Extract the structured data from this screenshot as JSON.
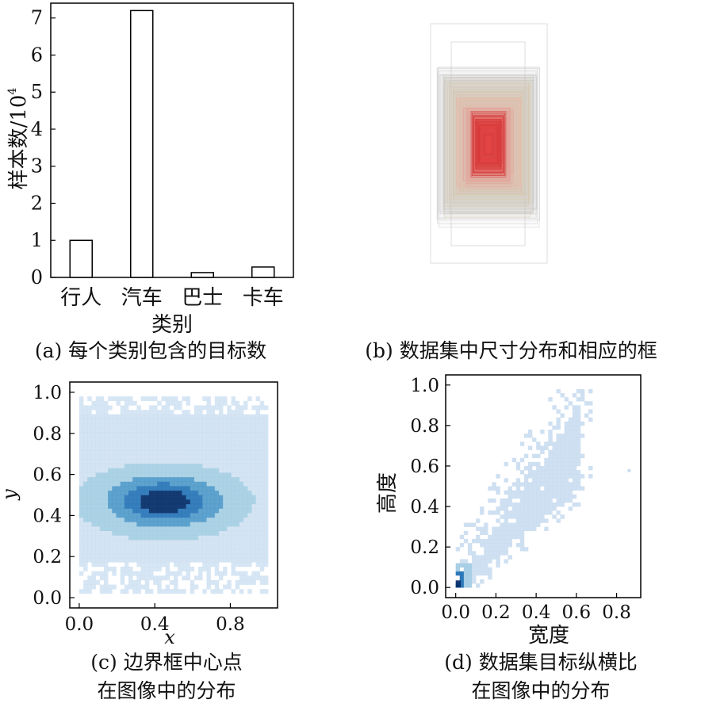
{
  "chart_data": [
    {
      "panel": "a",
      "type": "bar",
      "caption": "(a) 每个类别包含的目标数",
      "xlabel": "类别",
      "ylabel": "样本数/10",
      "ylabel_sup": "4",
      "categories": [
        "行人",
        "汽车",
        "巴士",
        "卡车"
      ],
      "values": [
        1.0,
        7.2,
        0.13,
        0.28
      ],
      "ylim": [
        0,
        7.4
      ],
      "yticks": [
        0,
        1,
        2,
        3,
        4,
        5,
        6,
        7
      ],
      "bar_fill": "#ffffff",
      "bar_stroke": "#000000"
    },
    {
      "panel": "b",
      "type": "other",
      "caption": "(b) 数据集中尺寸分布和相应的框",
      "description_colors": [
        "#e05050",
        "#f08a8a",
        "#f5b4a0",
        "#d8c8a8",
        "#c8c8c8"
      ]
    },
    {
      "panel": "c",
      "type": "heatmap",
      "caption_lines": [
        "(c) 边界框中心点",
        "在图像中的分布"
      ],
      "xlabel": "x",
      "ylabel": "y",
      "xlim": [
        -0.05,
        1.05
      ],
      "ylim": [
        -0.05,
        1.05
      ],
      "xticks": [
        "0.0",
        "0.4",
        "0.8"
      ],
      "xtick_values": [
        0.0,
        0.4,
        0.8
      ],
      "yticks": [
        "0.0",
        "0.2",
        "0.4",
        "0.6",
        "0.8",
        "1.0"
      ],
      "ytick_values": [
        0.0,
        0.2,
        0.4,
        0.6,
        0.8,
        1.0
      ],
      "x_range": [
        0.0,
        1.0
      ],
      "y_range": [
        0.02,
        0.98
      ],
      "peak": [
        0.45,
        0.47
      ],
      "colors": [
        "#c6dbef",
        "#9ecae1",
        "#4292c6",
        "#2171b5",
        "#08306b"
      ]
    },
    {
      "panel": "d",
      "type": "heatmap",
      "caption_lines": [
        "(d) 数据集目标纵横比",
        "在图像中的分布"
      ],
      "xlabel": "宽度",
      "ylabel": "高度",
      "xlim": [
        -0.05,
        0.92
      ],
      "ylim": [
        -0.05,
        1.05
      ],
      "xticks": [
        "0.0",
        "0.2",
        "0.4",
        "0.6",
        "0.8"
      ],
      "xtick_values": [
        0.0,
        0.2,
        0.4,
        0.6,
        0.8
      ],
      "yticks": [
        "0.0",
        "0.2",
        "0.4",
        "0.6",
        "0.8",
        "1.0"
      ],
      "ytick_values": [
        0.0,
        0.2,
        0.4,
        0.6,
        0.8,
        1.0
      ],
      "peak": [
        0.02,
        0.04
      ],
      "colors": [
        "#c6dbef",
        "#9ecae1",
        "#4292c6",
        "#2171b5",
        "#08306b"
      ]
    }
  ]
}
